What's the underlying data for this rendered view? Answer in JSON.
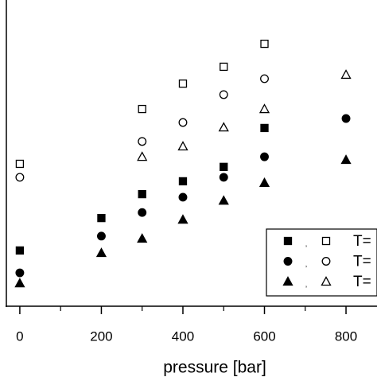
{
  "chart_data": {
    "type": "scatter",
    "x_label": "pressure [bar]",
    "xlim": [
      -33,
      876
    ],
    "xticks": [
      0,
      200,
      400,
      600,
      800
    ],
    "xminor_ticks": [
      100,
      300,
      500,
      700
    ],
    "ylim": [
      0,
      100
    ],
    "series": [
      {
        "marker": "square",
        "filled": true,
        "color": "#000000",
        "x": [
          0,
          200,
          300,
          400,
          500,
          600
        ],
        "values": [
          18.2,
          28.8,
          36.6,
          40.8,
          45.5,
          58.2
        ]
      },
      {
        "marker": "circle",
        "filled": true,
        "color": "#000000",
        "x": [
          0,
          200,
          300,
          400,
          500,
          600,
          800
        ],
        "values": [
          10.9,
          22.9,
          30.6,
          35.6,
          42.1,
          48.8,
          61.3
        ]
      },
      {
        "marker": "triangle",
        "filled": true,
        "color": "#000000",
        "x": [
          0,
          200,
          300,
          400,
          500,
          600,
          800
        ],
        "values": [
          7.5,
          17.4,
          22.1,
          28.3,
          34.5,
          40.3,
          47.8
        ]
      },
      {
        "marker": "square",
        "filled": false,
        "color": "#000000",
        "x": [
          0,
          300,
          400,
          500,
          600
        ],
        "values": [
          46.5,
          64.4,
          72.7,
          78.2,
          85.7
        ]
      },
      {
        "marker": "circle",
        "filled": false,
        "color": "#000000",
        "x": [
          0,
          300,
          400,
          500,
          600
        ],
        "values": [
          42.1,
          53.8,
          60.0,
          69.1,
          74.3
        ]
      },
      {
        "marker": "triangle",
        "filled": false,
        "color": "#000000",
        "x": [
          300,
          400,
          500,
          600,
          800
        ],
        "values": [
          48.8,
          52.2,
          58.4,
          64.4,
          75.6
        ]
      }
    ],
    "legend_rows": [
      {
        "separator": ",",
        "label": "T="
      },
      {
        "separator": ",",
        "label": "T="
      },
      {
        "separator": ",",
        "label": "T="
      }
    ]
  }
}
